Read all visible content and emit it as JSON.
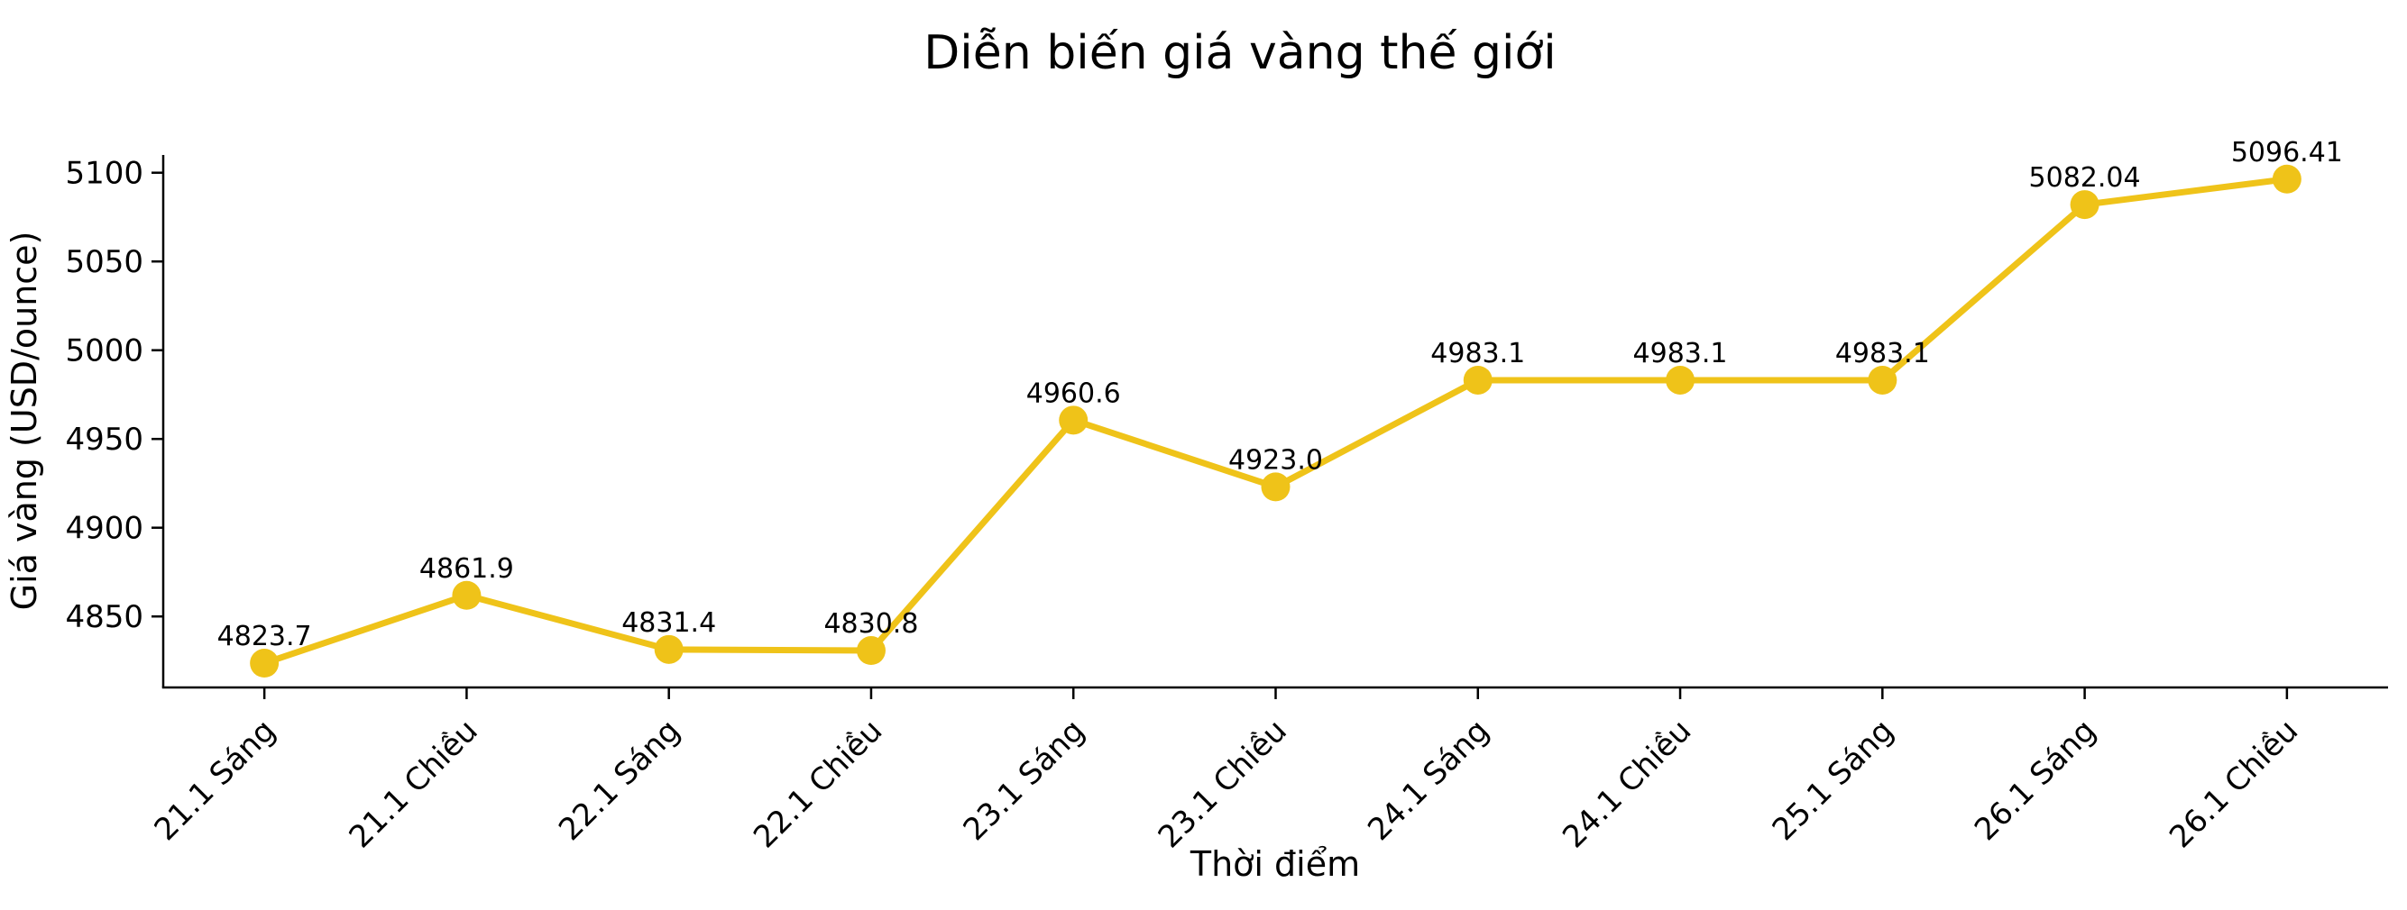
{
  "figure": {
    "background": "#ffffff"
  },
  "chart_data": {
    "type": "line",
    "title": "Diễn biến giá vàng thế giới",
    "xlabel": "Thời điểm",
    "ylabel": "Giá vàng (USD/ounce)",
    "categories": [
      "21.1 Sáng",
      "21.1 Chiều",
      "22.1 Sáng",
      "22.1 Chiều",
      "23.1 Sáng",
      "23.1 Chiều",
      "24.1 Sáng",
      "24.1 Chiều",
      "25.1 Sáng",
      "26.1 Sáng",
      "26.1 Chiều"
    ],
    "values": [
      4823.7,
      4861.9,
      4831.4,
      4830.8,
      4960.6,
      4923.0,
      4983.1,
      4983.1,
      4983.1,
      5082.04,
      5096.41
    ],
    "point_labels": [
      "4823.7",
      "4861.9",
      "4831.4",
      "4830.8",
      "4960.6",
      "4923.0",
      "4983.1",
      "4983.1",
      "4983.1",
      "5082.04",
      "5096.41"
    ],
    "yticks": [
      4850,
      4900,
      4950,
      5000,
      5050,
      5100
    ],
    "ylim": [
      4810,
      5110
    ],
    "line_color": "#EFC319",
    "marker": "circle",
    "text_color": "#000000",
    "spine_color": "#000000",
    "grid": false,
    "legend": false,
    "x_tick_rotation": 45
  }
}
